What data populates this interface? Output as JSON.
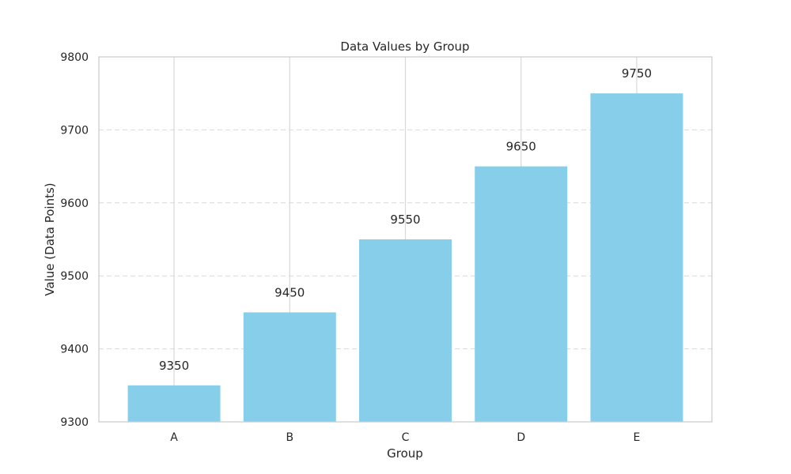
{
  "chart_data": {
    "type": "bar",
    "title": "Data Values by Group",
    "xlabel": "Group",
    "ylabel": "Value (Data Points)",
    "categories": [
      "A",
      "B",
      "C",
      "D",
      "E"
    ],
    "values": [
      9350,
      9450,
      9550,
      9650,
      9750
    ],
    "data_labels": [
      "9350",
      "9450",
      "9550",
      "9650",
      "9750"
    ],
    "ylim": [
      9300,
      9800
    ],
    "yticks": [
      9300,
      9400,
      9500,
      9600,
      9700,
      9800
    ],
    "ytick_labels": [
      "9300",
      "9400",
      "9500",
      "9600",
      "9700",
      "9800"
    ],
    "grid": {
      "y": "dashed",
      "x": "solid"
    },
    "colors": {
      "bar": "#87ceeb",
      "grid": "#d9d9d9",
      "frame": "#cccccc",
      "text": "#262626"
    }
  }
}
